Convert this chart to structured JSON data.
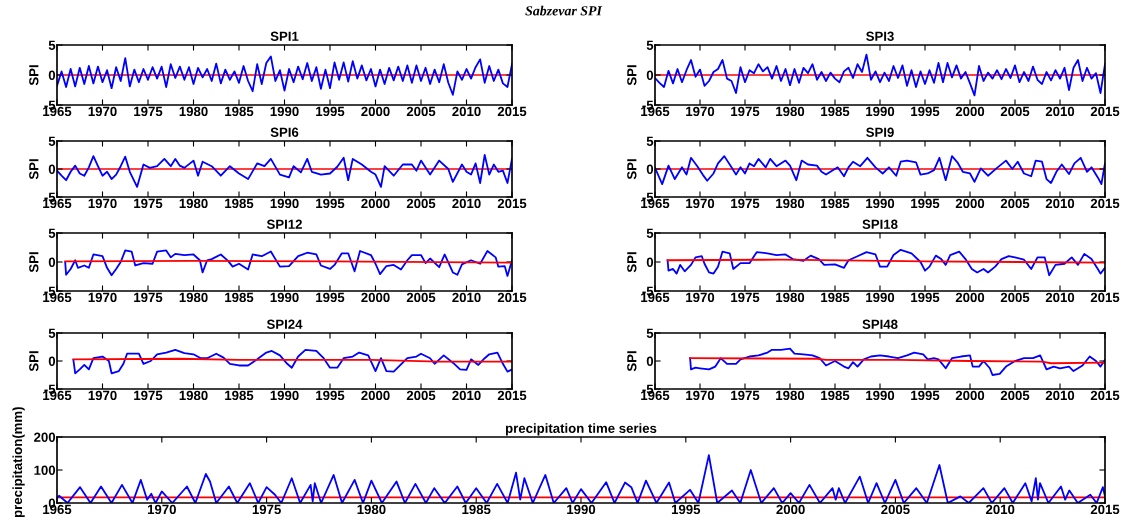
{
  "chart_data": [
    {
      "type": "line",
      "title": "SPI1",
      "ylabel": "SPI",
      "annotations": [
        "Sabzevar SPI"
      ],
      "xlim": [
        1965,
        2015
      ],
      "xticks": [
        1965,
        1970,
        1975,
        1980,
        1985,
        1990,
        1995,
        2000,
        2005,
        2010,
        2015
      ],
      "ylim": [
        -5,
        5
      ],
      "yticks": [
        -5,
        0,
        5
      ],
      "ref_lines": [
        {
          "axis": "y",
          "value": 0,
          "color": "#ff0000"
        }
      ],
      "series": [
        {
          "color": "#0000ff",
          "x": [
            1965.0,
            1965.5,
            1966.0,
            1966.5,
            1967.0,
            1967.5,
            1968.0,
            1968.5,
            1969.0,
            1969.5,
            1970.0,
            1970.5,
            1971.0,
            1971.5,
            1972.0,
            1972.5,
            1973.0,
            1973.5,
            1974.0,
            1974.5,
            1975.0,
            1975.5,
            1976.0,
            1976.5,
            1977.0,
            1977.5,
            1978.0,
            1978.5,
            1979.0,
            1979.5,
            1980.0,
            1980.5,
            1981.0,
            1981.5,
            1982.0,
            1982.5,
            1983.0,
            1983.5,
            1984.0,
            1984.5,
            1985.0,
            1985.5,
            1986.0,
            1986.5,
            1987.0,
            1987.5,
            1988.0,
            1988.5,
            1989.0,
            1989.5,
            1990.0,
            1990.5,
            1991.0,
            1991.5,
            1992.0,
            1992.5,
            1993.0,
            1993.5,
            1994.0,
            1994.5,
            1995.0,
            1995.5,
            1996.0,
            1996.5,
            1997.0,
            1997.5,
            1998.0,
            1998.5,
            1999.0,
            1999.5,
            2000.0,
            2000.5,
            2001.0,
            2001.5,
            2002.0,
            2002.5,
            2003.0,
            2003.5,
            2004.0,
            2004.5,
            2005.0,
            2005.5,
            2006.0,
            2006.5,
            2007.0,
            2007.5,
            2008.0,
            2008.5,
            2009.0,
            2009.5,
            2010.0,
            2010.5,
            2011.0,
            2011.5,
            2012.0,
            2012.5,
            2013.0,
            2013.5,
            2014.0,
            2014.5,
            2015.0
          ],
          "values": [
            -1.8,
            0.6,
            -2.0,
            1.0,
            -1.9,
            1.2,
            -1.5,
            1.5,
            -1.4,
            1.4,
            -1.2,
            0.8,
            -2.2,
            1.3,
            -1.0,
            2.8,
            -1.9,
            0.9,
            -1.2,
            1.0,
            -0.8,
            1.3,
            -0.6,
            1.4,
            -2.0,
            1.8,
            -0.5,
            1.4,
            -0.8,
            1.3,
            -1.5,
            1.2,
            -0.4,
            1.0,
            -1.0,
            1.9,
            -1.4,
            0.9,
            -0.8,
            0.6,
            -1.3,
            1.5,
            -1.0,
            -2.7,
            1.8,
            -1.5,
            2.0,
            3.1,
            -1.0,
            0.8,
            -2.6,
            1.0,
            -1.2,
            1.4,
            -0.7,
            2.0,
            -1.0,
            1.3,
            -2.3,
            0.9,
            -2.2,
            2.1,
            -0.8,
            2.1,
            -1.1,
            2.3,
            -0.6,
            1.6,
            -0.9,
            1.0,
            -1.9,
            0.9,
            -1.5,
            1.2,
            -0.9,
            1.4,
            -1.0,
            1.6,
            -1.3,
            1.6,
            -1.0,
            1.2,
            -1.5,
            0.9,
            -1.2,
            1.8,
            -1.3,
            -3.3,
            0.6,
            -0.8,
            1.0,
            -0.6,
            1.3,
            2.6,
            -1.3,
            1.5,
            -1.0,
            0.9,
            -1.4,
            -2.0,
            1.8
          ]
        }
      ]
    },
    {
      "type": "line",
      "title": "SPI3",
      "ylabel": "SPI",
      "xlim": [
        1965,
        2015
      ],
      "xticks": [
        1965,
        1970,
        1975,
        1980,
        1985,
        1990,
        1995,
        2000,
        2005,
        2010,
        2015
      ],
      "ylim": [
        -5,
        5
      ],
      "yticks": [
        -5,
        0,
        5
      ],
      "ref_lines": [
        {
          "axis": "y",
          "value": 0,
          "color": "#ff0000"
        }
      ],
      "series": [
        {
          "color": "#0000ff",
          "x": [
            1965.0,
            1965.5,
            1966.0,
            1966.5,
            1967.0,
            1967.5,
            1968.0,
            1968.5,
            1969.0,
            1969.5,
            1970.0,
            1970.5,
            1971.0,
            1971.5,
            1972.0,
            1972.5,
            1973.0,
            1973.5,
            1974.0,
            1974.5,
            1975.0,
            1975.5,
            1976.0,
            1976.5,
            1977.0,
            1977.5,
            1978.0,
            1978.5,
            1979.0,
            1979.5,
            1980.0,
            1980.5,
            1981.0,
            1981.5,
            1982.0,
            1982.5,
            1983.0,
            1983.5,
            1984.0,
            1984.5,
            1985.0,
            1985.5,
            1986.0,
            1986.5,
            1987.0,
            1987.5,
            1988.0,
            1988.5,
            1989.0,
            1989.5,
            1990.0,
            1990.5,
            1991.0,
            1991.5,
            1992.0,
            1992.5,
            1993.0,
            1993.5,
            1994.0,
            1994.5,
            1995.0,
            1995.5,
            1996.0,
            1996.5,
            1997.0,
            1997.5,
            1998.0,
            1998.5,
            1999.0,
            1999.5,
            2000.0,
            2000.5,
            2001.0,
            2001.5,
            2002.0,
            2002.5,
            2003.0,
            2003.5,
            2004.0,
            2004.5,
            2005.0,
            2005.5,
            2006.0,
            2006.5,
            2007.0,
            2007.5,
            2008.0,
            2008.5,
            2009.0,
            2009.5,
            2010.0,
            2010.5,
            2011.0,
            2011.5,
            2012.0,
            2012.5,
            2013.0,
            2013.5,
            2014.0,
            2014.5,
            2015.0
          ],
          "values": [
            -0.5,
            -1.3,
            -2.0,
            0.7,
            -1.4,
            1.0,
            -1.2,
            0.8,
            2.5,
            -0.3,
            0.9,
            -1.8,
            -1.0,
            0.5,
            1.0,
            2.5,
            -0.6,
            -1.0,
            -3.0,
            1.3,
            -1.2,
            0.8,
            0.3,
            1.8,
            0.6,
            1.3,
            -0.6,
            1.5,
            -1.0,
            1.0,
            -1.7,
            1.0,
            -1.3,
            1.2,
            0.3,
            1.8,
            -0.8,
            0.5,
            -1.0,
            0.4,
            -0.6,
            -1.2,
            0.6,
            1.2,
            -0.5,
            1.8,
            0.5,
            3.4,
            -0.8,
            0.6,
            -1.2,
            0.4,
            -1.0,
            1.5,
            -0.5,
            1.6,
            -1.8,
            0.8,
            -2.0,
            0.6,
            -1.5,
            0.8,
            -1.3,
            2.0,
            -1.2,
            2.0,
            -0.4,
            1.6,
            -0.6,
            0.5,
            -1.4,
            -3.4,
            1.5,
            -1.0,
            0.4,
            -0.6,
            0.8,
            -0.7,
            1.0,
            -0.5,
            1.6,
            -1.2,
            0.5,
            -1.0,
            1.4,
            -0.8,
            -1.5,
            0.5,
            -0.9,
            0.8,
            -0.6,
            1.2,
            -2.5,
            1.2,
            2.5,
            -1.0,
            1.2,
            -0.6,
            0.3,
            -3.0,
            1.8
          ]
        }
      ]
    },
    {
      "type": "line",
      "title": "SPI6",
      "ylabel": "SPI",
      "xlim": [
        1965,
        2015
      ],
      "xticks": [
        1965,
        1970,
        1975,
        1980,
        1985,
        1990,
        1995,
        2000,
        2005,
        2010,
        2015
      ],
      "ylim": [
        -5,
        5
      ],
      "yticks": [
        -5,
        0,
        5
      ],
      "ref_lines": [
        {
          "axis": "y",
          "value": 0,
          "color": "#ff0000"
        }
      ],
      "series": [
        {
          "color": "#0000ff",
          "x": [
            1965.0,
            1965.5,
            1966.0,
            1966.5,
            1967.0,
            1967.5,
            1968.0,
            1968.5,
            1969.0,
            1969.5,
            1970.0,
            1970.5,
            1971.0,
            1971.5,
            1972.0,
            1972.5,
            1973.0,
            1973.8,
            1974.5,
            1975.2,
            1976.0,
            1976.8,
            1977.5,
            1978.0,
            1978.5,
            1979.0,
            1980.0,
            1980.5,
            1981.0,
            1982.0,
            1983.0,
            1984.0,
            1985.0,
            1986.0,
            1987.0,
            1987.8,
            1988.5,
            1989.5,
            1990.5,
            1991.0,
            1991.8,
            1992.5,
            1993.0,
            1994.0,
            1995.0,
            1995.8,
            1996.5,
            1997.0,
            1997.5,
            1998.5,
            1999.5,
            2000.0,
            2000.6,
            2001.0,
            2002.0,
            2003.0,
            2004.0,
            2004.5,
            2005.0,
            2006.0,
            2007.0,
            2008.0,
            2008.5,
            2009.5,
            2010.0,
            2010.5,
            2011.0,
            2011.5,
            2012.0,
            2012.5,
            2013.0,
            2013.5,
            2014.0,
            2014.5,
            2015.0
          ],
          "values": [
            -0.3,
            -1.2,
            -2.0,
            -0.5,
            0.6,
            -0.8,
            -1.2,
            0.3,
            2.3,
            0.5,
            -1.2,
            -0.5,
            -1.8,
            -1.0,
            0.5,
            2.2,
            -0.5,
            -3.2,
            0.8,
            0.2,
            0.5,
            1.8,
            0.5,
            1.8,
            0.6,
            0.2,
            1.5,
            -1.2,
            1.3,
            0.5,
            -1.2,
            0.5,
            -0.8,
            -1.8,
            1.0,
            0.5,
            1.8,
            -1.0,
            -1.5,
            0.5,
            -0.6,
            1.8,
            -0.5,
            -1.0,
            -0.8,
            0.4,
            2.0,
            -2.0,
            1.8,
            0.8,
            -0.5,
            -1.0,
            -3.2,
            0.5,
            -1.2,
            0.8,
            0.8,
            -0.3,
            1.5,
            -1.0,
            1.5,
            0.0,
            -2.3,
            0.8,
            -0.5,
            -1.0,
            1.0,
            -2.5,
            2.5,
            -1.0,
            0.8,
            -0.5,
            -0.3,
            -2.5,
            1.8
          ]
        }
      ]
    },
    {
      "type": "line",
      "title": "SPI9",
      "ylabel": "SPI",
      "xlim": [
        1965,
        2015
      ],
      "xticks": [
        1965,
        1970,
        1975,
        1980,
        1985,
        1990,
        1995,
        2000,
        2005,
        2010,
        2015
      ],
      "ylim": [
        -5,
        5
      ],
      "yticks": [
        -5,
        0,
        5
      ],
      "ref_lines": [
        {
          "axis": "y",
          "value": 0,
          "color": "#ff0000"
        }
      ],
      "series": [
        {
          "color": "#0000ff",
          "x": [
            1965.0,
            1965.8,
            1966.5,
            1967.2,
            1968.0,
            1968.5,
            1969.0,
            1969.7,
            1970.3,
            1970.8,
            1971.5,
            1972.0,
            1972.7,
            1973.5,
            1974.0,
            1974.5,
            1975.0,
            1975.5,
            1976.0,
            1976.5,
            1977.3,
            1977.8,
            1978.5,
            1979.5,
            1980.0,
            1980.7,
            1981.3,
            1982.0,
            1983.0,
            1983.5,
            1984.0,
            1985.3,
            1986.0,
            1986.5,
            1987.0,
            1987.8,
            1988.6,
            1989.5,
            1990.3,
            1991.0,
            1991.8,
            1992.3,
            1993.0,
            1994.0,
            1994.5,
            1995.3,
            1996.0,
            1996.6,
            1997.3,
            1998.0,
            1998.6,
            1999.2,
            2000.0,
            2000.5,
            2001.2,
            2002.0,
            2003.0,
            2004.0,
            2004.7,
            2005.3,
            2006.0,
            2006.8,
            2007.3,
            2008.0,
            2008.5,
            2009.0,
            2009.6,
            2010.2,
            2011.0,
            2011.6,
            2012.3,
            2013.0,
            2013.5,
            2014.2,
            2014.6,
            2015.0
          ],
          "values": [
            0.2,
            -2.7,
            0.6,
            -1.8,
            0.3,
            -1.0,
            2.0,
            0.5,
            -1.0,
            -2.1,
            -0.8,
            1.0,
            2.3,
            0.3,
            -1.0,
            0.3,
            -0.8,
            1.0,
            0.5,
            1.8,
            0.3,
            1.8,
            0.5,
            1.5,
            0.6,
            -2.0,
            1.5,
            0.8,
            0.6,
            -0.5,
            -1.0,
            0.3,
            -1.3,
            0.3,
            1.3,
            0.5,
            2.0,
            0.3,
            -0.8,
            0.3,
            -1.2,
            1.3,
            1.5,
            1.2,
            -1.0,
            -0.8,
            -0.2,
            2.0,
            -2.0,
            2.3,
            1.2,
            -0.5,
            -0.8,
            -2.3,
            0.1,
            -1.2,
            0.2,
            1.5,
            0.0,
            1.3,
            -0.8,
            -1.3,
            1.5,
            1.3,
            -1.8,
            -2.5,
            -0.5,
            0.8,
            -0.9,
            1.0,
            2.0,
            -0.5,
            0.3,
            -1.5,
            -2.7,
            1.0
          ]
        }
      ]
    },
    {
      "type": "line",
      "title": "SPI12",
      "ylabel": "SPI",
      "xlim": [
        1965,
        2015
      ],
      "xticks": [
        1965,
        1970,
        1975,
        1980,
        1985,
        1990,
        1995,
        2000,
        2005,
        2010,
        2015
      ],
      "ylim": [
        -5,
        5
      ],
      "yticks": [
        -5,
        0,
        5
      ],
      "series": [
        {
          "color": "#0000ff",
          "x": [
            1965.9,
            1966.0,
            1966.5,
            1967.0,
            1967.3,
            1968.0,
            1968.5,
            1969.0,
            1970.0,
            1970.5,
            1971.0,
            1971.5,
            1972.0,
            1972.5,
            1973.2,
            1973.6,
            1974.5,
            1975.5,
            1976.0,
            1977.0,
            1977.5,
            1978.0,
            1979.0,
            1980.0,
            1980.7,
            1981.0,
            1981.5,
            1982.0,
            1983.0,
            1983.8,
            1984.3,
            1985.0,
            1986.0,
            1986.5,
            1987.5,
            1988.5,
            1989.5,
            1990.5,
            1991.5,
            1992.5,
            1993.5,
            1994.0,
            1995.0,
            1995.5,
            1996.3,
            1997.0,
            1997.7,
            1998.3,
            1999.5,
            2000.0,
            2000.5,
            2001.2,
            2002.0,
            2002.8,
            2003.5,
            2004.0,
            2005.0,
            2005.5,
            2006.0,
            2007.0,
            2007.6,
            2008.5,
            2009.0,
            2009.5,
            2010.5,
            2011.5,
            2012.3,
            2013.2,
            2013.5,
            2014.2,
            2014.5,
            2015.0
          ],
          "values": [
            0.0,
            -2.2,
            -1.2,
            0.3,
            -1.0,
            -0.6,
            -1.0,
            1.3,
            1.0,
            -1.0,
            -2.3,
            -1.2,
            0.0,
            2.0,
            1.8,
            -0.6,
            -0.2,
            -0.3,
            1.8,
            2.0,
            0.8,
            1.4,
            1.2,
            1.3,
            0.3,
            -1.8,
            0.3,
            0.5,
            1.3,
            0.2,
            -0.8,
            -0.3,
            -1.3,
            1.3,
            1.0,
            1.8,
            -0.8,
            -0.7,
            1.0,
            1.6,
            1.3,
            -0.6,
            -1.2,
            -0.5,
            1.5,
            1.5,
            -1.6,
            1.9,
            1.2,
            -0.3,
            -2.1,
            -0.7,
            -0.5,
            -1.3,
            0.3,
            1.2,
            1.2,
            -0.2,
            0.6,
            -0.9,
            1.3,
            -1.8,
            -2.2,
            -0.4,
            0.3,
            -0.3,
            1.9,
            0.8,
            -0.8,
            -0.7,
            -2.4,
            0.3
          ]
        },
        {
          "color": "#ff0000",
          "x": [
            1965.9,
            1980,
            1995,
            2015
          ],
          "values": [
            0.1,
            0.2,
            0.1,
            -0.1
          ]
        }
      ]
    },
    {
      "type": "line",
      "title": "SPI18",
      "ylabel": "SPI",
      "xlim": [
        1965,
        2015
      ],
      "xticks": [
        1965,
        1970,
        1975,
        1980,
        1985,
        1990,
        1995,
        2000,
        2005,
        2010,
        2015
      ],
      "ylim": [
        -5,
        5
      ],
      "yticks": [
        -5,
        0,
        5
      ],
      "series": [
        {
          "color": "#0000ff",
          "x": [
            1966.4,
            1966.5,
            1967.0,
            1967.4,
            1967.8,
            1968.3,
            1969.0,
            1969.5,
            1970.2,
            1970.5,
            1971.0,
            1971.5,
            1972.0,
            1972.5,
            1973.3,
            1973.7,
            1974.5,
            1975.5,
            1976.3,
            1977.5,
            1978.5,
            1979.5,
            1980.3,
            1981.5,
            1982.3,
            1983.2,
            1983.8,
            1985.0,
            1986.0,
            1986.5,
            1987.5,
            1988.5,
            1989.5,
            1990.0,
            1990.8,
            1991.5,
            1992.3,
            1993.5,
            1994.5,
            1995.0,
            1995.5,
            1996.2,
            1996.8,
            1997.3,
            1997.8,
            1998.8,
            1999.5,
            2000.2,
            2000.8,
            2001.5,
            2002.0,
            2002.8,
            2003.5,
            2004.3,
            2005.0,
            2006.0,
            2006.8,
            2007.5,
            2008.3,
            2008.8,
            2009.5,
            2010.5,
            2011.3,
            2012.0,
            2012.7,
            2013.5,
            2014.2,
            2014.5,
            2015.0
          ],
          "values": [
            0.3,
            -1.5,
            -1.2,
            -2.0,
            -0.5,
            -1.6,
            -0.5,
            0.8,
            1.0,
            -0.3,
            -1.8,
            -2.0,
            -0.8,
            1.8,
            1.5,
            -1.2,
            -0.2,
            -0.2,
            1.7,
            1.5,
            1.2,
            1.3,
            0.5,
            0.2,
            1.1,
            0.5,
            -0.5,
            -0.4,
            -1.0,
            0.3,
            1.0,
            1.7,
            1.3,
            -0.8,
            -0.8,
            1.2,
            2.1,
            1.5,
            0.0,
            -1.5,
            -0.8,
            1.1,
            0.5,
            -0.5,
            1.2,
            1.8,
            0.5,
            -1.2,
            -1.8,
            -1.2,
            -1.8,
            -0.8,
            0.5,
            1.0,
            0.8,
            0.4,
            -1.2,
            0.8,
            0.8,
            -2.3,
            -0.5,
            -0.3,
            0.8,
            -0.5,
            1.4,
            0.5,
            -1.2,
            -2.0,
            -1.0
          ]
        },
        {
          "color": "#ff0000",
          "x": [
            1966.4,
            1979,
            1995,
            2015
          ],
          "values": [
            0.3,
            0.4,
            0.1,
            -0.1
          ]
        }
      ]
    },
    {
      "type": "line",
      "title": "SPI24",
      "ylabel": "SPI",
      "xlim": [
        1965,
        2015
      ],
      "xticks": [
        1965,
        1970,
        1975,
        1980,
        1985,
        1990,
        1995,
        2000,
        2005,
        2010,
        2015
      ],
      "ylim": [
        -5,
        5
      ],
      "yticks": [
        -5,
        0,
        5
      ],
      "series": [
        {
          "color": "#0000ff",
          "x": [
            1966.8,
            1967.0,
            1967.5,
            1968.0,
            1968.5,
            1969.0,
            1970.0,
            1970.7,
            1971.0,
            1971.8,
            1972.3,
            1972.7,
            1974.0,
            1974.5,
            1975.3,
            1976.0,
            1977.0,
            1978.0,
            1979.0,
            1980.0,
            1980.8,
            1981.5,
            1982.5,
            1983.3,
            1984.0,
            1985.0,
            1986.0,
            1987.0,
            1988.0,
            1988.6,
            1989.5,
            1990.3,
            1990.8,
            1991.5,
            1992.3,
            1993.5,
            1994.3,
            1995.0,
            1995.8,
            1996.5,
            1997.5,
            1998.2,
            1999.2,
            2000.0,
            2000.6,
            2001.2,
            2002.0,
            2002.8,
            2003.5,
            2004.5,
            2005.0,
            2006.0,
            2006.5,
            2007.5,
            2008.5,
            2009.3,
            2010.0,
            2010.5,
            2011.3,
            2012.0,
            2012.5,
            2013.4,
            2014.0,
            2014.5,
            2015.0
          ],
          "values": [
            0.2,
            -2.2,
            -1.5,
            -0.7,
            -1.5,
            0.5,
            0.8,
            0.0,
            -2.2,
            -1.8,
            -0.5,
            1.3,
            1.3,
            -0.5,
            0.0,
            1.2,
            1.5,
            2.0,
            1.4,
            1.2,
            0.5,
            0.5,
            1.3,
            0.6,
            -0.5,
            -0.8,
            -0.8,
            0.3,
            1.5,
            1.8,
            1.0,
            -0.5,
            -1.2,
            0.8,
            2.0,
            1.8,
            0.5,
            -1.2,
            -1.2,
            0.5,
            0.8,
            1.5,
            1.0,
            -1.8,
            0.5,
            -1.8,
            -1.9,
            -0.6,
            0.5,
            0.8,
            1.3,
            0.5,
            -0.5,
            1.0,
            -0.3,
            -1.5,
            -1.6,
            0.3,
            -0.7,
            0.5,
            1.2,
            1.5,
            -0.5,
            -1.9,
            -1.5
          ]
        },
        {
          "color": "#ff0000",
          "x": [
            1966.8,
            1978.5,
            1985,
            1999.5,
            2007,
            2015
          ],
          "values": [
            0.3,
            0.4,
            0.2,
            0.2,
            -0.1,
            -0.1
          ]
        }
      ]
    },
    {
      "type": "line",
      "title": "SPI48",
      "ylabel": "SPI",
      "xlim": [
        1965,
        2015
      ],
      "xticks": [
        1965,
        1970,
        1975,
        1980,
        1985,
        1990,
        1995,
        2000,
        2005,
        2010,
        2015
      ],
      "ylim": [
        -5,
        5
      ],
      "yticks": [
        -5,
        0,
        5
      ],
      "series": [
        {
          "color": "#0000ff",
          "x": [
            1968.9,
            1969.0,
            1969.5,
            1970.0,
            1971.0,
            1971.7,
            1972.3,
            1973.0,
            1974.0,
            1974.5,
            1975.5,
            1976.5,
            1977.5,
            1978.0,
            1979.0,
            1980.0,
            1980.5,
            1981.5,
            1982.5,
            1983.3,
            1984.0,
            1985.0,
            1986.0,
            1986.5,
            1987.0,
            1987.5,
            1988.2,
            1989.0,
            1990.0,
            1991.0,
            1992.0,
            1993.0,
            1993.8,
            1994.8,
            1995.3,
            1996.0,
            1996.5,
            1997.3,
            1998.0,
            1999.0,
            2000.0,
            2000.3,
            2001.0,
            2001.5,
            2002.2,
            2002.5,
            2003.3,
            2004.0,
            2005.0,
            2006.0,
            2007.0,
            2007.8,
            2008.5,
            2009.3,
            2010.0,
            2011.0,
            2011.5,
            2012.5,
            2013.3,
            2014.0,
            2014.5,
            2015.0
          ],
          "values": [
            0.5,
            -1.5,
            -1.2,
            -1.3,
            -1.5,
            -1.0,
            0.5,
            -0.5,
            -0.5,
            0.3,
            0.8,
            1.0,
            1.5,
            2.0,
            2.0,
            2.2,
            1.3,
            1.2,
            1.0,
            0.5,
            -0.8,
            0.0,
            -1.0,
            -1.3,
            -0.2,
            -1.0,
            0.3,
            0.8,
            1.0,
            0.8,
            0.5,
            1.0,
            1.5,
            1.2,
            0.3,
            0.5,
            0.3,
            -1.3,
            0.5,
            0.8,
            1.0,
            -1.0,
            -1.0,
            0.0,
            -1.3,
            -2.5,
            -2.3,
            -1.0,
            0.0,
            0.5,
            0.5,
            1.0,
            -1.5,
            -1.0,
            -1.3,
            -1.0,
            -1.8,
            -0.8,
            0.8,
            0.0,
            -1.0,
            0.2
          ]
        },
        {
          "color": "#ff0000",
          "x": [
            1968.9,
            1983,
            1984,
            1992,
            2000,
            2008,
            2009,
            2015
          ],
          "values": [
            0.5,
            0.4,
            0.2,
            0.2,
            0.0,
            -0.1,
            -0.4,
            -0.3
          ]
        }
      ]
    },
    {
      "type": "line",
      "title": "precipitation time series",
      "ylabel": "precipitation(mm)",
      "xlim": [
        1965,
        2015
      ],
      "xticks": [
        1965,
        1970,
        1975,
        1980,
        1985,
        1990,
        1995,
        2000,
        2005,
        2010,
        2015
      ],
      "ylim": [
        0,
        200
      ],
      "yticks": [
        0,
        100,
        200
      ],
      "ref_lines": [
        {
          "axis": "y",
          "value": 17,
          "color": "#ff0000"
        }
      ],
      "series": [
        {
          "color": "#0000ff",
          "x": [
            1965.0,
            1965.1,
            1965.5,
            1966.1,
            1966.6,
            1967.1,
            1967.6,
            1968.1,
            1968.6,
            1969.0,
            1969.3,
            1969.5,
            1969.7,
            1970.0,
            1970.5,
            1971.2,
            1971.6,
            1972.1,
            1972.3,
            1972.6,
            1973.2,
            1973.6,
            1974.2,
            1974.6,
            1975.0,
            1975.4,
            1975.7,
            1976.2,
            1976.6,
            1977.1,
            1977.2,
            1977.3,
            1977.6,
            1978.2,
            1978.6,
            1979.2,
            1979.6,
            1980.0,
            1980.5,
            1981.2,
            1981.6,
            1982.1,
            1982.6,
            1983.0,
            1983.5,
            1984.1,
            1984.5,
            1985.0,
            1985.5,
            1986.0,
            1986.5,
            1986.9,
            1987.1,
            1987.3,
            1987.7,
            1988.3,
            1988.7,
            1989.3,
            1989.6,
            1990.0,
            1990.5,
            1991.2,
            1991.6,
            1992.1,
            1992.4,
            1992.7,
            1993.1,
            1993.6,
            1994.2,
            1994.5,
            1995.2,
            1995.6,
            1996.1,
            1996.5,
            1997.2,
            1997.6,
            1998.1,
            1998.6,
            1999.2,
            1999.6,
            2000.0,
            2000.4,
            2000.9,
            2001.4,
            2002.0,
            2002.15,
            2002.3,
            2002.6,
            2003.3,
            2003.7,
            2004.1,
            2004.5,
            2005.0,
            2005.4,
            2006.0,
            2006.5,
            2007.1,
            2007.5,
            2008.1,
            2008.5,
            2009.2,
            2009.6,
            2010.2,
            2010.6,
            2011.2,
            2011.5,
            2011.7,
            2011.8,
            2011.9,
            2012.3,
            2012.9,
            2013.1,
            2013.3,
            2013.7,
            2014.3,
            2014.6,
            2014.9,
            2015.0
          ],
          "values": [
            15,
            22,
            0,
            48,
            0,
            50,
            0,
            55,
            0,
            70,
            10,
            28,
            0,
            35,
            0,
            50,
            0,
            88,
            65,
            0,
            50,
            0,
            60,
            0,
            48,
            25,
            0,
            75,
            0,
            55,
            5,
            60,
            0,
            85,
            0,
            70,
            0,
            68,
            0,
            65,
            0,
            58,
            0,
            45,
            0,
            50,
            0,
            45,
            0,
            58,
            0,
            92,
            10,
            75,
            0,
            85,
            0,
            45,
            0,
            42,
            0,
            63,
            0,
            62,
            48,
            0,
            68,
            0,
            62,
            0,
            40,
            0,
            145,
            0,
            38,
            0,
            100,
            0,
            45,
            0,
            30,
            0,
            55,
            0,
            45,
            10,
            45,
            0,
            80,
            0,
            60,
            0,
            70,
            0,
            45,
            0,
            115,
            0,
            20,
            0,
            45,
            0,
            45,
            0,
            60,
            5,
            75,
            10,
            60,
            0,
            50,
            10,
            38,
            0,
            25,
            0,
            48,
            20
          ]
        }
      ]
    }
  ]
}
